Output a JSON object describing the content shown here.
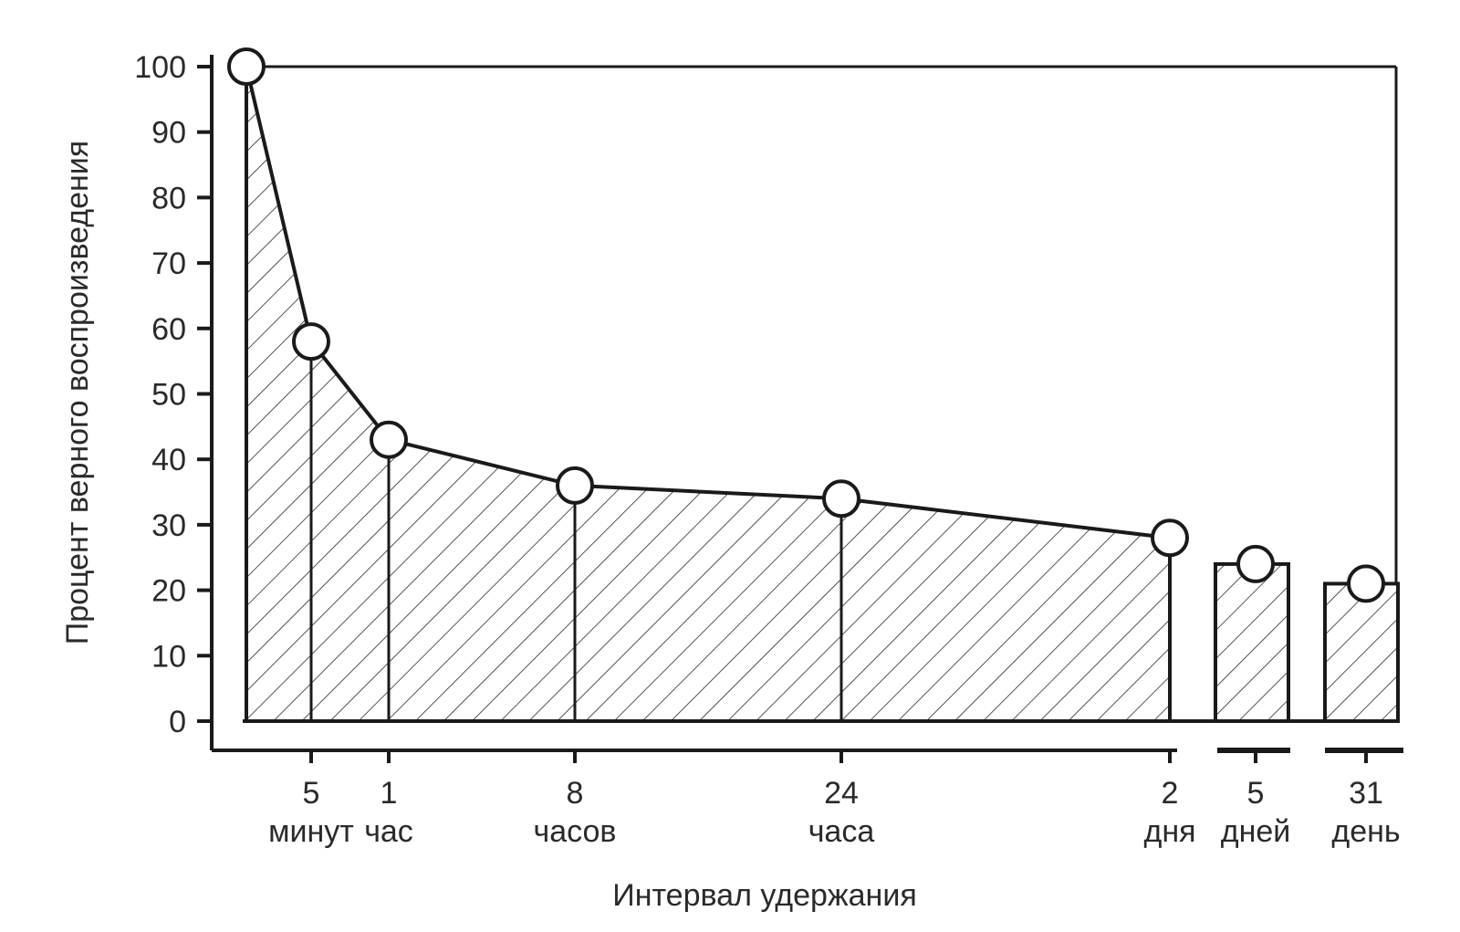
{
  "chart_data": {
    "type": "area",
    "title": "",
    "xlabel": "Интервал удержания",
    "ylabel": "Процент верного воспроизведения",
    "ylim": [
      0,
      100
    ],
    "y_ticks": [
      "0",
      "10",
      "20",
      "30",
      "40",
      "50",
      "60",
      "70",
      "80",
      "90",
      "100"
    ],
    "grid": false,
    "legend": "none",
    "x_ticks": [
      {
        "value": "5",
        "unit": "минут"
      },
      {
        "value": "1",
        "unit": "час"
      },
      {
        "value": "8",
        "unit": "часов"
      },
      {
        "value": "24",
        "unit": "часа"
      },
      {
        "value": "2",
        "unit": "дня"
      },
      {
        "value": "5",
        "unit": "дней"
      },
      {
        "value": "31",
        "unit": "день"
      }
    ],
    "points": [
      {
        "x": "0",
        "y": 100
      },
      {
        "x": "5 минут",
        "y": 58
      },
      {
        "x": "1 час",
        "y": 43
      },
      {
        "x": "8 часов",
        "y": 36
      },
      {
        "x": "24 часа",
        "y": 34
      },
      {
        "x": "2 дня",
        "y": 28
      },
      {
        "x": "5 дней",
        "y": 24
      },
      {
        "x": "31 день",
        "y": 21
      }
    ],
    "fill_pattern": "diagonal-hatch",
    "colors": {
      "stroke": "#1a1a1a",
      "fill": "#ffffff",
      "text": "#2a2a2a"
    }
  }
}
